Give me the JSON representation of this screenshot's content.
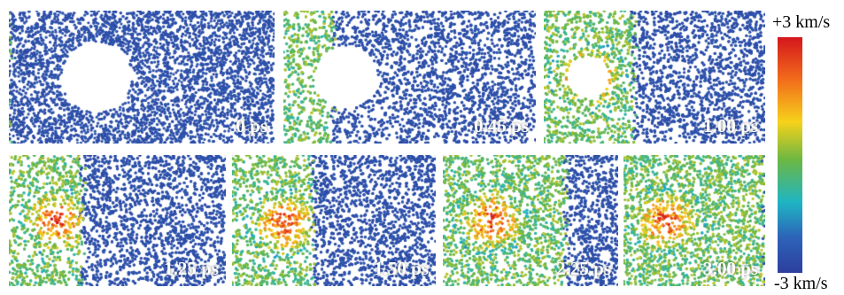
{
  "panels": [
    {
      "time_label": "0 ps",
      "shock_front": 0.0,
      "void_radius": 1.0
    },
    {
      "time_label": "0.45 ps",
      "shock_front": 0.1,
      "void_radius": 0.9
    },
    {
      "time_label": "1.00 ps",
      "shock_front": 0.25,
      "void_radius": 0.6
    },
    {
      "time_label": "1.25 ps",
      "shock_front": 0.3,
      "void_radius": 0
    },
    {
      "time_label": "1.50 ps",
      "shock_front": 0.4,
      "void_radius": 0
    },
    {
      "time_label": "2.25 ps",
      "shock_front": 0.7,
      "void_radius": 0
    },
    {
      "time_label": "3.00 ps",
      "shock_front": 1.0,
      "void_radius": 0
    }
  ],
  "colorbar": {
    "max_label": "+3 km/s",
    "min_label": "-3 km/s",
    "colors": [
      "#d4161d",
      "#f26c1b",
      "#f6d21b",
      "#6cb743",
      "#1fb5c4",
      "#2d63b8",
      "#2d3f9e"
    ]
  }
}
